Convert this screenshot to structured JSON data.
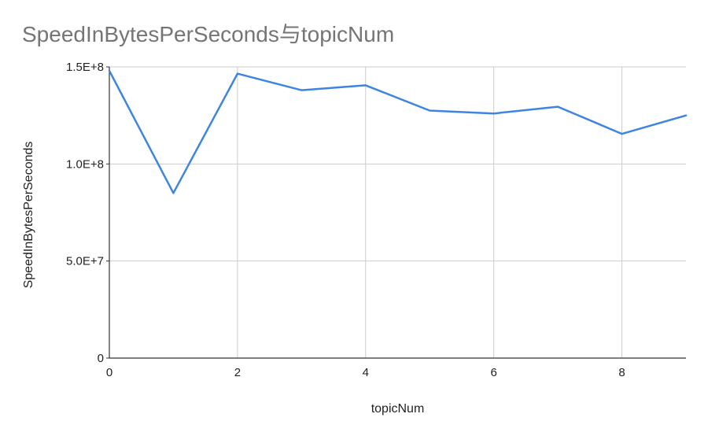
{
  "chart_data": {
    "type": "line",
    "title": "SpeedInBytesPerSeconds与topicNum",
    "xlabel": "topicNum",
    "ylabel": "SpeedInBytesPerSeconds",
    "x": [
      0,
      1,
      2,
      3,
      4,
      5,
      6,
      7,
      8,
      9
    ],
    "series": [
      {
        "values": [
          148000000,
          85000000,
          146500000,
          138000000,
          140500000,
          127500000,
          126000000,
          129500000,
          115500000,
          125000000
        ]
      }
    ],
    "xlim": [
      0,
      9
    ],
    "ylim": [
      0,
      150000000
    ],
    "x_ticks": [
      {
        "value": 0,
        "label": "0"
      },
      {
        "value": 2,
        "label": "2"
      },
      {
        "value": 4,
        "label": "4"
      },
      {
        "value": 6,
        "label": "6"
      },
      {
        "value": 8,
        "label": "8"
      }
    ],
    "y_ticks": [
      {
        "value": 0,
        "label": "0"
      },
      {
        "value": 50000000,
        "label": "5.0E+7"
      },
      {
        "value": 100000000,
        "label": "1.0E+8"
      },
      {
        "value": 150000000,
        "label": "1.5E+8"
      }
    ],
    "grid": true,
    "line_color": "#3d85e0",
    "grid_color": "#cccccc",
    "axis_color": "#333333"
  }
}
